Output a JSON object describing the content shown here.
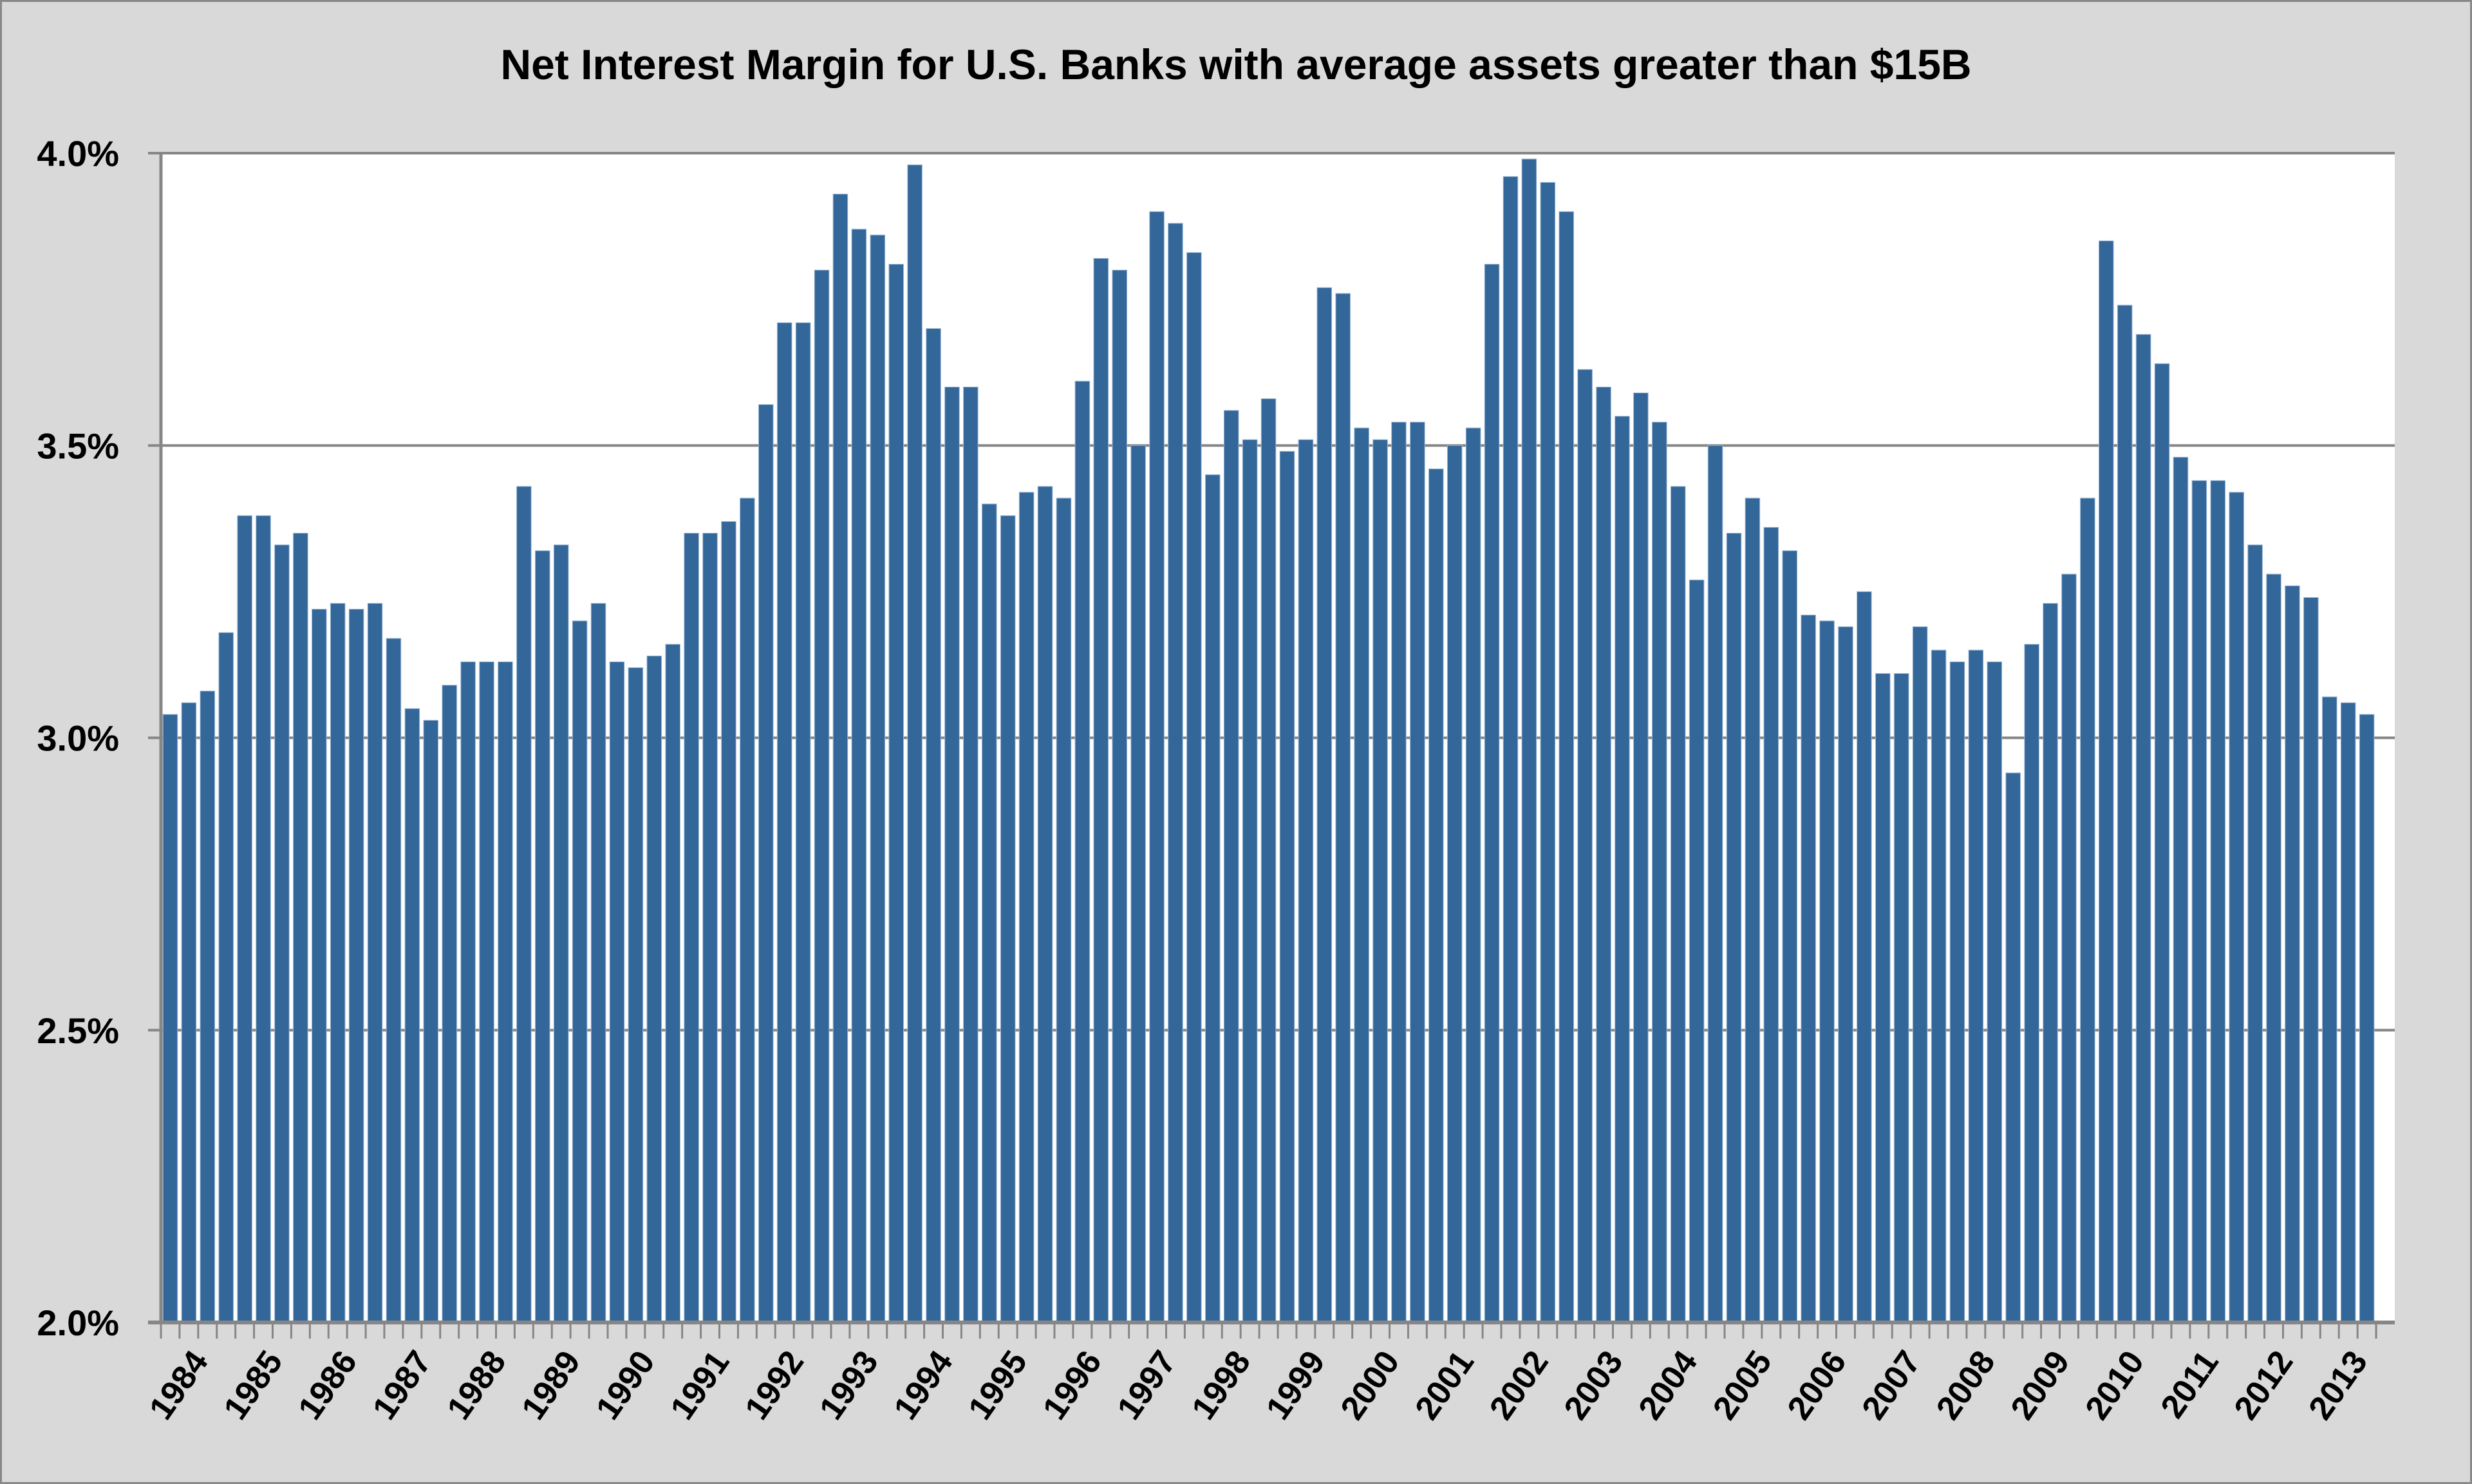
{
  "chart_data": {
    "type": "bar",
    "title": "Net Interest Margin for U.S. Banks with average assets greater than $15B",
    "xlabel": "",
    "ylabel": "",
    "ylim": [
      2.0,
      4.0
    ],
    "yticks": [
      2.0,
      2.5,
      3.0,
      3.5,
      4.0
    ],
    "ytick_labels": [
      "2.0%",
      "2.5%",
      "3.0%",
      "3.5%",
      "4.0%"
    ],
    "grid": true,
    "legend": "none",
    "bar_color": "#336699",
    "frequency": "quarterly",
    "year_labels": [
      "1984",
      "1985",
      "1986",
      "1987",
      "1988",
      "1989",
      "1990",
      "1991",
      "1992",
      "1993",
      "1994",
      "1995",
      "1996",
      "1997",
      "1998",
      "1999",
      "2000",
      "2001",
      "2002",
      "2003",
      "2004",
      "2005",
      "2006",
      "2007",
      "2008",
      "2009",
      "2010",
      "2011",
      "2012",
      "2013"
    ],
    "values": [
      3.04,
      3.06,
      3.08,
      3.18,
      3.38,
      3.38,
      3.33,
      3.35,
      3.22,
      3.23,
      3.22,
      3.23,
      3.17,
      3.05,
      3.03,
      3.09,
      3.13,
      3.13,
      3.13,
      3.43,
      3.32,
      3.33,
      3.2,
      3.23,
      3.13,
      3.12,
      3.14,
      3.16,
      3.35,
      3.35,
      3.37,
      3.41,
      3.57,
      3.71,
      3.71,
      3.8,
      3.93,
      3.87,
      3.86,
      3.81,
      3.98,
      3.7,
      3.6,
      3.6,
      3.4,
      3.38,
      3.42,
      3.43,
      3.41,
      3.61,
      3.82,
      3.8,
      3.5,
      3.9,
      3.88,
      3.83,
      3.45,
      3.56,
      3.51,
      3.58,
      3.49,
      3.51,
      3.77,
      3.76,
      3.53,
      3.51,
      3.54,
      3.54,
      3.46,
      3.5,
      3.53,
      3.81,
      3.96,
      3.99,
      3.95,
      3.9,
      3.63,
      3.6,
      3.55,
      3.59,
      3.54,
      3.43,
      3.27,
      3.5,
      3.35,
      3.41,
      3.36,
      3.32,
      3.21,
      3.2,
      3.19,
      3.25,
      3.11,
      3.11,
      3.19,
      3.15,
      3.13,
      3.15,
      3.13,
      2.94,
      3.16,
      3.23,
      3.28,
      3.41,
      3.85,
      3.74,
      3.69,
      3.64,
      3.48,
      3.44,
      3.44,
      3.42,
      3.33,
      3.28,
      3.26,
      3.24,
      3.07,
      3.06,
      3.04
    ]
  }
}
